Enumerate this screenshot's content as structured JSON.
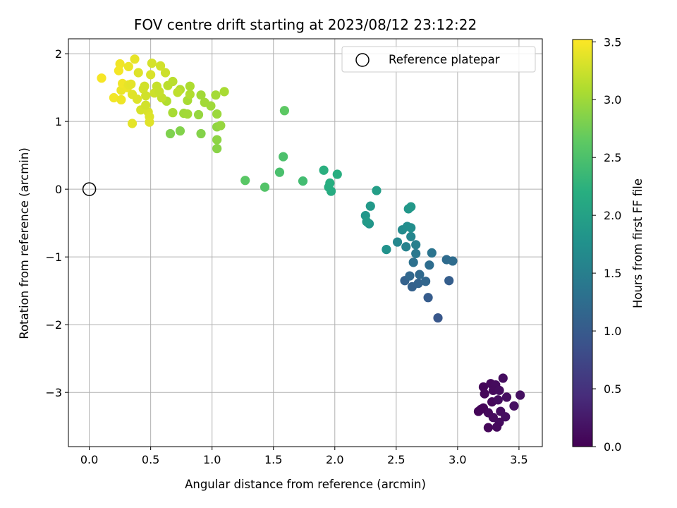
{
  "chart_data": {
    "type": "scatter",
    "title": "FOV centre drift starting at 2023/08/12 23:12:22",
    "xlabel": "Angular distance from reference (arcmin)",
    "ylabel": "Rotation from reference (arcmin)",
    "xlim": [
      -0.17,
      3.69
    ],
    "ylim": [
      -3.8,
      2.22
    ],
    "xticks": [
      0.0,
      0.5,
      1.0,
      1.5,
      2.0,
      2.5,
      3.0,
      3.5
    ],
    "xtick_labels": [
      "0.0",
      "0.5",
      "1.0",
      "1.5",
      "2.0",
      "2.5",
      "3.0",
      "3.5"
    ],
    "yticks": [
      -3,
      -2,
      -1,
      0,
      1,
      2
    ],
    "ytick_labels": [
      "−3",
      "−2",
      "−1",
      "0",
      "1",
      "2"
    ],
    "grid": true,
    "colorbar": {
      "label": "Hours from first FF file",
      "range": [
        0.0,
        3.52
      ],
      "ticks": [
        0.0,
        0.5,
        1.0,
        1.5,
        2.0,
        2.5,
        3.0,
        3.5
      ],
      "tick_labels": [
        "0.0",
        "0.5",
        "1.0",
        "1.5",
        "2.0",
        "2.5",
        "3.0",
        "3.5"
      ],
      "colormap": "viridis"
    },
    "reference": {
      "name": "Reference platepar",
      "x": 0.0,
      "y": 0.0
    },
    "legend": {
      "position": "top-right",
      "entries": [
        "Reference platepar"
      ]
    },
    "points": [
      {
        "x": 3.21,
        "y": -2.92,
        "h": 0.05
      },
      {
        "x": 3.27,
        "y": -2.87,
        "h": 0.08
      },
      {
        "x": 3.31,
        "y": -2.89,
        "h": 0.1
      },
      {
        "x": 3.37,
        "y": -2.79,
        "h": 0.12
      },
      {
        "x": 3.22,
        "y": -3.02,
        "h": 0.06
      },
      {
        "x": 3.29,
        "y": -2.97,
        "h": 0.09
      },
      {
        "x": 3.34,
        "y": -2.97,
        "h": 0.11
      },
      {
        "x": 3.4,
        "y": -3.07,
        "h": 0.13
      },
      {
        "x": 3.51,
        "y": -3.04,
        "h": 0.15
      },
      {
        "x": 3.28,
        "y": -3.14,
        "h": 0.07
      },
      {
        "x": 3.33,
        "y": -3.11,
        "h": 0.12
      },
      {
        "x": 3.46,
        "y": -3.2,
        "h": 0.14
      },
      {
        "x": 3.17,
        "y": -3.28,
        "h": 0.03
      },
      {
        "x": 3.21,
        "y": -3.23,
        "h": 0.05
      },
      {
        "x": 3.25,
        "y": -3.3,
        "h": 0.08
      },
      {
        "x": 3.29,
        "y": -3.37,
        "h": 0.1
      },
      {
        "x": 3.35,
        "y": -3.28,
        "h": 0.12
      },
      {
        "x": 3.39,
        "y": -3.36,
        "h": 0.14
      },
      {
        "x": 3.34,
        "y": -3.44,
        "h": 0.11
      },
      {
        "x": 3.25,
        "y": -3.52,
        "h": 0.06
      },
      {
        "x": 3.32,
        "y": -3.51,
        "h": 0.09
      },
      {
        "x": 3.19,
        "y": -3.25,
        "h": 0.04
      },
      {
        "x": 2.84,
        "y": -1.9,
        "h": 0.95
      },
      {
        "x": 2.76,
        "y": -1.6,
        "h": 1.02
      },
      {
        "x": 2.63,
        "y": -1.44,
        "h": 1.08
      },
      {
        "x": 2.57,
        "y": -1.35,
        "h": 1.1
      },
      {
        "x": 2.68,
        "y": -1.39,
        "h": 1.12
      },
      {
        "x": 2.74,
        "y": -1.36,
        "h": 1.15
      },
      {
        "x": 2.61,
        "y": -1.28,
        "h": 1.18
      },
      {
        "x": 2.69,
        "y": -1.26,
        "h": 1.2
      },
      {
        "x": 2.93,
        "y": -1.35,
        "h": 1.05
      },
      {
        "x": 2.77,
        "y": -1.12,
        "h": 1.25
      },
      {
        "x": 2.64,
        "y": -1.08,
        "h": 1.3
      },
      {
        "x": 2.91,
        "y": -1.04,
        "h": 1.22
      },
      {
        "x": 2.96,
        "y": -1.06,
        "h": 1.24
      },
      {
        "x": 2.79,
        "y": -0.94,
        "h": 1.35
      },
      {
        "x": 2.66,
        "y": -0.95,
        "h": 1.4
      },
      {
        "x": 2.58,
        "y": -0.85,
        "h": 1.55
      },
      {
        "x": 2.66,
        "y": -0.82,
        "h": 1.5
      },
      {
        "x": 2.51,
        "y": -0.78,
        "h": 1.62
      },
      {
        "x": 2.62,
        "y": -0.7,
        "h": 1.6
      },
      {
        "x": 2.55,
        "y": -0.6,
        "h": 1.68
      },
      {
        "x": 2.59,
        "y": -0.55,
        "h": 1.7
      },
      {
        "x": 2.62,
        "y": -0.57,
        "h": 1.72
      },
      {
        "x": 2.42,
        "y": -0.89,
        "h": 1.78
      },
      {
        "x": 2.28,
        "y": -0.51,
        "h": 1.82
      },
      {
        "x": 2.25,
        "y": -0.39,
        "h": 1.85
      },
      {
        "x": 2.29,
        "y": -0.25,
        "h": 1.88
      },
      {
        "x": 2.26,
        "y": -0.48,
        "h": 1.9
      },
      {
        "x": 2.6,
        "y": -0.29,
        "h": 1.85
      },
      {
        "x": 2.62,
        "y": -0.26,
        "h": 1.87
      },
      {
        "x": 2.34,
        "y": -0.02,
        "h": 1.95
      },
      {
        "x": 1.97,
        "y": -0.03,
        "h": 2.15
      },
      {
        "x": 1.95,
        "y": 0.03,
        "h": 2.18
      },
      {
        "x": 1.96,
        "y": 0.09,
        "h": 2.2
      },
      {
        "x": 1.91,
        "y": 0.28,
        "h": 2.22
      },
      {
        "x": 2.02,
        "y": 0.22,
        "h": 2.2
      },
      {
        "x": 1.74,
        "y": 0.12,
        "h": 2.42
      },
      {
        "x": 1.55,
        "y": 0.25,
        "h": 2.48
      },
      {
        "x": 1.58,
        "y": 0.48,
        "h": 2.5
      },
      {
        "x": 1.43,
        "y": 0.03,
        "h": 2.55
      },
      {
        "x": 1.27,
        "y": 0.13,
        "h": 2.6
      },
      {
        "x": 1.59,
        "y": 1.16,
        "h": 2.62
      },
      {
        "x": 1.04,
        "y": 0.6,
        "h": 2.88
      },
      {
        "x": 1.04,
        "y": 0.73,
        "h": 2.9
      },
      {
        "x": 1.04,
        "y": 0.92,
        "h": 2.92
      },
      {
        "x": 1.07,
        "y": 0.94,
        "h": 2.95
      },
      {
        "x": 0.91,
        "y": 0.82,
        "h": 2.85
      },
      {
        "x": 0.66,
        "y": 0.82,
        "h": 2.82
      },
      {
        "x": 0.74,
        "y": 0.86,
        "h": 2.84
      },
      {
        "x": 1.04,
        "y": 1.11,
        "h": 2.98
      },
      {
        "x": 0.99,
        "y": 1.23,
        "h": 3.0
      },
      {
        "x": 0.94,
        "y": 1.28,
        "h": 3.02
      },
      {
        "x": 1.1,
        "y": 1.44,
        "h": 3.05
      },
      {
        "x": 1.03,
        "y": 1.39,
        "h": 3.03
      },
      {
        "x": 0.91,
        "y": 1.39,
        "h": 3.02
      },
      {
        "x": 0.89,
        "y": 1.1,
        "h": 2.95
      },
      {
        "x": 0.77,
        "y": 1.12,
        "h": 3.0
      },
      {
        "x": 0.8,
        "y": 1.11,
        "h": 3.02
      },
      {
        "x": 0.68,
        "y": 1.13,
        "h": 3.05
      },
      {
        "x": 0.63,
        "y": 1.3,
        "h": 3.1
      },
      {
        "x": 0.8,
        "y": 1.31,
        "h": 3.05
      },
      {
        "x": 0.82,
        "y": 1.52,
        "h": 3.08
      },
      {
        "x": 0.82,
        "y": 1.4,
        "h": 3.1
      },
      {
        "x": 0.74,
        "y": 1.47,
        "h": 3.12
      },
      {
        "x": 0.68,
        "y": 1.59,
        "h": 3.15
      },
      {
        "x": 0.64,
        "y": 1.53,
        "h": 3.15
      },
      {
        "x": 0.72,
        "y": 1.43,
        "h": 3.18
      },
      {
        "x": 0.59,
        "y": 1.35,
        "h": 3.2
      },
      {
        "x": 0.55,
        "y": 1.52,
        "h": 3.22
      },
      {
        "x": 0.62,
        "y": 1.72,
        "h": 3.25
      },
      {
        "x": 0.58,
        "y": 1.82,
        "h": 3.28
      },
      {
        "x": 0.51,
        "y": 1.86,
        "h": 3.3
      },
      {
        "x": 0.5,
        "y": 1.69,
        "h": 3.32
      },
      {
        "x": 0.4,
        "y": 1.72,
        "h": 3.35
      },
      {
        "x": 0.37,
        "y": 1.92,
        "h": 3.4
      },
      {
        "x": 0.32,
        "y": 1.81,
        "h": 3.42
      },
      {
        "x": 0.25,
        "y": 1.85,
        "h": 3.45
      },
      {
        "x": 0.24,
        "y": 1.75,
        "h": 3.47
      },
      {
        "x": 0.1,
        "y": 1.64,
        "h": 3.48
      },
      {
        "x": 0.2,
        "y": 1.35,
        "h": 3.46
      },
      {
        "x": 0.26,
        "y": 1.32,
        "h": 3.44
      },
      {
        "x": 0.26,
        "y": 1.46,
        "h": 3.42
      },
      {
        "x": 0.27,
        "y": 1.56,
        "h": 3.45
      },
      {
        "x": 0.31,
        "y": 1.5,
        "h": 3.43
      },
      {
        "x": 0.32,
        "y": 1.54,
        "h": 3.4
      },
      {
        "x": 0.34,
        "y": 1.55,
        "h": 3.38
      },
      {
        "x": 0.35,
        "y": 1.4,
        "h": 3.36
      },
      {
        "x": 0.39,
        "y": 1.33,
        "h": 3.35
      },
      {
        "x": 0.42,
        "y": 1.17,
        "h": 3.3
      },
      {
        "x": 0.44,
        "y": 1.48,
        "h": 3.3
      },
      {
        "x": 0.45,
        "y": 1.52,
        "h": 3.28
      },
      {
        "x": 0.48,
        "y": 1.14,
        "h": 3.32
      },
      {
        "x": 0.49,
        "y": 1.07,
        "h": 3.34
      },
      {
        "x": 0.49,
        "y": 0.99,
        "h": 3.36
      },
      {
        "x": 0.35,
        "y": 0.97,
        "h": 3.38
      },
      {
        "x": 0.46,
        "y": 1.24,
        "h": 3.28
      },
      {
        "x": 0.53,
        "y": 1.42,
        "h": 3.25
      },
      {
        "x": 0.57,
        "y": 1.44,
        "h": 3.22
      },
      {
        "x": 0.46,
        "y": 1.38,
        "h": 3.27
      }
    ]
  }
}
